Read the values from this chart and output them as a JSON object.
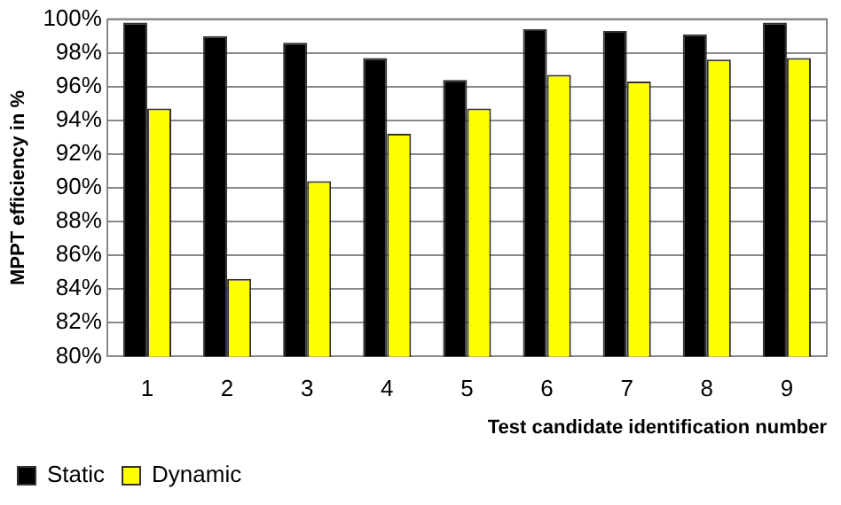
{
  "chart_data": {
    "type": "bar",
    "xlabel": "Test candidate identification number",
    "ylabel": "MPPT efficiency in %",
    "categories": [
      "1",
      "2",
      "3",
      "4",
      "5",
      "6",
      "7",
      "8",
      "9"
    ],
    "series": [
      {
        "name": "Static",
        "color": "#000000",
        "values": [
          99.8,
          99.0,
          98.6,
          97.7,
          96.4,
          99.4,
          99.3,
          99.1,
          99.8
        ]
      },
      {
        "name": "Dynamic",
        "color": "#ffff00",
        "values": [
          94.7,
          84.6,
          90.4,
          93.2,
          94.7,
          96.7,
          96.3,
          97.6,
          97.7
        ]
      }
    ],
    "ylim": [
      80,
      100
    ],
    "yticks": [
      {
        "value": 80,
        "label": "80%"
      },
      {
        "value": 82,
        "label": "82%"
      },
      {
        "value": 84,
        "label": "84%"
      },
      {
        "value": 86,
        "label": "86%"
      },
      {
        "value": 88,
        "label": "88%"
      },
      {
        "value": 90,
        "label": "90%"
      },
      {
        "value": 92,
        "label": "92%"
      },
      {
        "value": 94,
        "label": "94%"
      },
      {
        "value": 96,
        "label": "96%"
      },
      {
        "value": 98,
        "label": "98%"
      },
      {
        "value": 100,
        "label": "100%"
      }
    ],
    "grid": "y",
    "legend": "bottom left"
  }
}
